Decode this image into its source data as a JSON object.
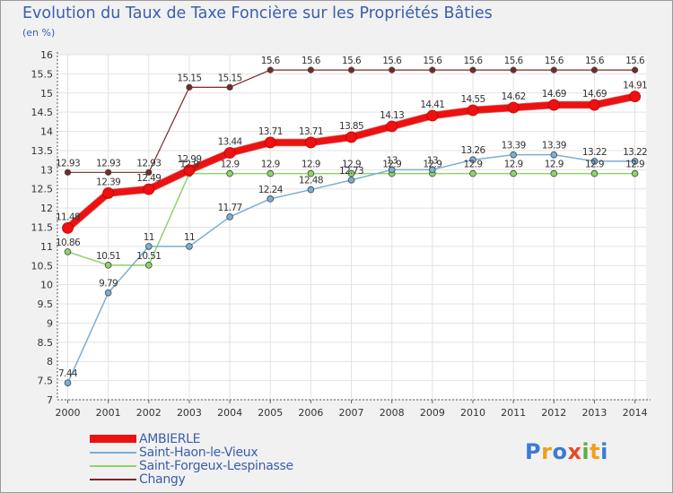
{
  "header": {
    "title": "Evolution du Taux de Taxe Foncière sur les Propriétés Bâties",
    "unit": "(en %)"
  },
  "logo": {
    "text": "Proxiti",
    "colors": [
      "#3b7bd6",
      "#f0a020",
      "#3b7bd6",
      "#e84830",
      "#5bb040",
      "#f0a020",
      "#3b7bd6"
    ]
  },
  "chart_data": {
    "type": "line",
    "title": "Evolution du Taux de Taxe Foncière sur les Propriétés Bâties",
    "ylabel": "(en %)",
    "xlabel": "",
    "ylim": [
      7,
      16
    ],
    "yticks": [
      "7",
      "7.5",
      "8",
      "8.5",
      "9",
      "9.5",
      "10",
      "10.5",
      "11",
      "11.5",
      "12",
      "12.5",
      "13",
      "13.5",
      "14",
      "14.5",
      "15",
      "15.5",
      "16"
    ],
    "categories": [
      "2000",
      "2001",
      "2002",
      "2003",
      "2004",
      "2005",
      "2006",
      "2007",
      "2008",
      "2009",
      "2010",
      "2011",
      "2012",
      "2013",
      "2014"
    ],
    "grid": true,
    "legend_position": "bottom-left",
    "series": [
      {
        "name": "Changy",
        "color": "#7a2828",
        "width": 1.2,
        "marker_r": 3.2,
        "values": [
          12.93,
          12.93,
          12.93,
          15.15,
          15.15,
          15.6,
          15.6,
          15.6,
          15.6,
          15.6,
          15.6,
          15.6,
          15.6,
          15.6,
          15.6
        ],
        "labels": [
          "12.93",
          "12.93",
          "12.93",
          "15.15",
          "15.15",
          "15.6",
          "15.6",
          "15.6",
          "15.6",
          "15.6",
          "15.6",
          "15.6",
          "15.6",
          "15.6",
          "15.6"
        ]
      },
      {
        "name": "Saint-Forgeux-Lespinasse",
        "color": "#8ed468",
        "width": 1.5,
        "marker_r": 3.4,
        "values": [
          10.86,
          10.51,
          10.51,
          12.9,
          12.9,
          12.9,
          12.9,
          12.9,
          12.9,
          12.9,
          12.9,
          12.9,
          12.9,
          12.9,
          12.9
        ],
        "labels": [
          "10.86",
          "10.51",
          "10.51",
          "12.9",
          "12.9",
          "12.9",
          "12.9",
          "12.9",
          "12.9",
          "12.9",
          "12.9",
          "12.9",
          "12.9",
          "12.9",
          "12.9"
        ]
      },
      {
        "name": "Saint-Haon-le-Vieux",
        "color": "#7aaed4",
        "width": 1.5,
        "marker_r": 3.4,
        "values": [
          7.44,
          9.79,
          11.0,
          11.0,
          11.77,
          12.24,
          12.48,
          12.73,
          13.0,
          13.0,
          13.26,
          13.39,
          13.39,
          13.22,
          13.22
        ],
        "labels": [
          "7.44",
          "9.79",
          "11",
          "11",
          "11.77",
          "12.24",
          "12.48",
          "12.73",
          "13",
          "13",
          "13.26",
          "13.39",
          "13.39",
          "13.22",
          "13.22"
        ]
      },
      {
        "name": "AMBIERLE",
        "color": "#ee1111",
        "width": 7,
        "marker_r": 6,
        "values": [
          11.48,
          12.39,
          12.49,
          12.99,
          13.44,
          13.71,
          13.71,
          13.85,
          14.13,
          14.41,
          14.55,
          14.62,
          14.69,
          14.69,
          14.91
        ],
        "labels": [
          "11.48",
          "12.39",
          "12.49",
          "12.99",
          "13.44",
          "13.71",
          "13.71",
          "13.85",
          "14.13",
          "14.41",
          "14.55",
          "14.62",
          "14.69",
          "14.69",
          "14.91"
        ]
      }
    ]
  }
}
